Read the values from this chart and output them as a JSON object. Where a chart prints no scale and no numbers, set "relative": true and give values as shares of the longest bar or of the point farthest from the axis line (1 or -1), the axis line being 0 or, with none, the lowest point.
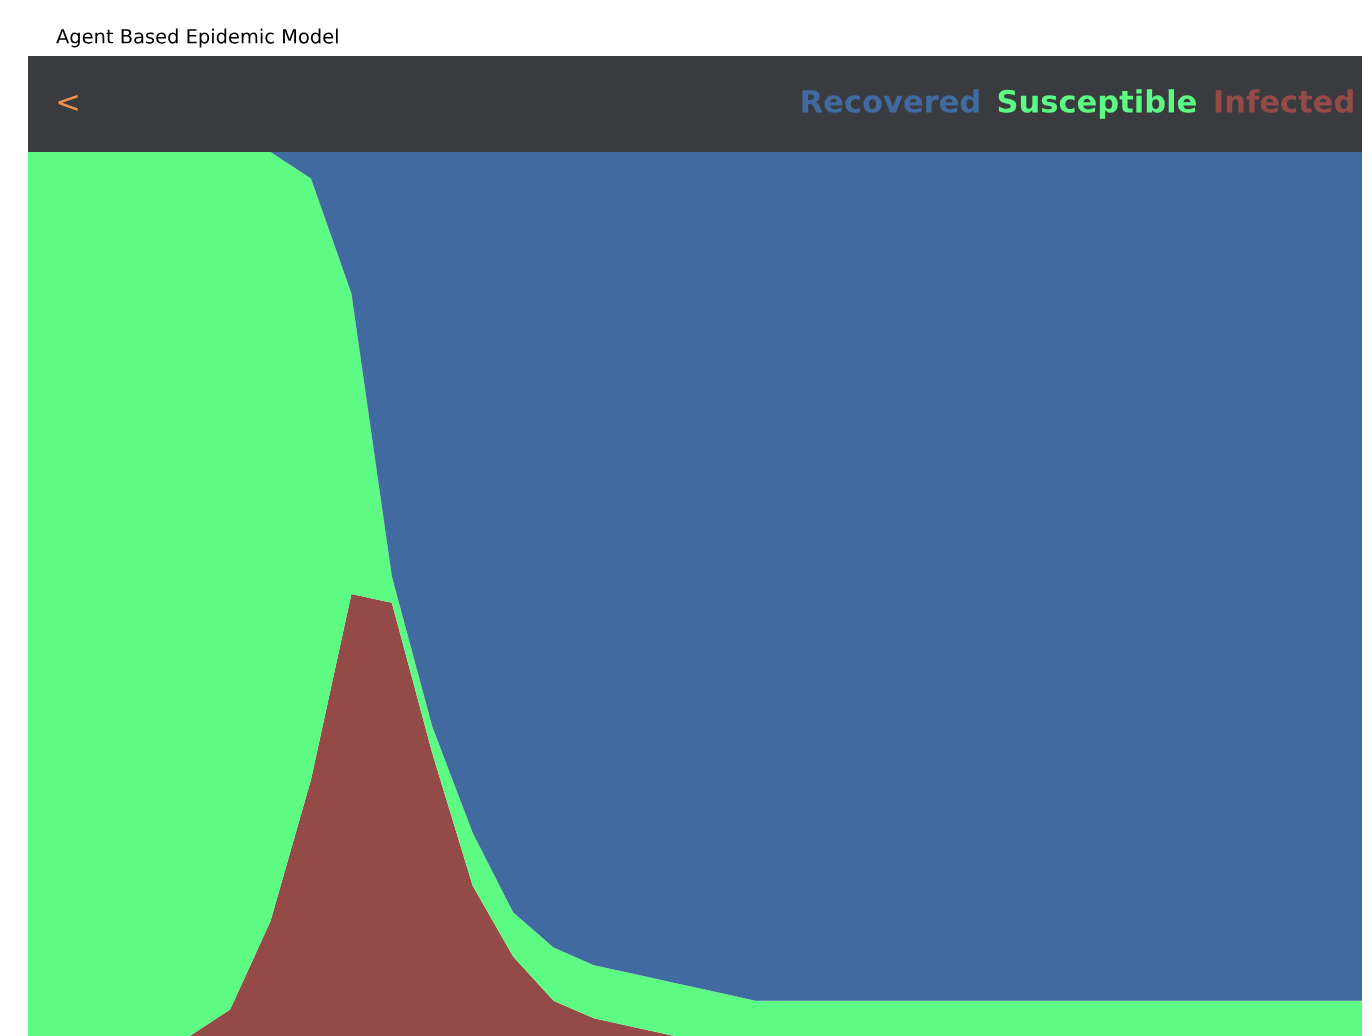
{
  "chart_data": {
    "type": "area",
    "title": "Agent Based Epidemic Model",
    "stacked": true,
    "relative": true,
    "legend": "top right",
    "annotations": [
      "<"
    ],
    "categories": [
      null,
      null,
      null,
      null,
      null,
      null,
      null,
      null,
      null,
      null,
      null,
      null,
      null,
      null,
      null,
      null,
      null,
      null,
      null,
      null,
      null,
      null,
      null,
      null,
      null,
      null,
      null,
      null,
      null,
      null,
      null,
      null,
      null,
      null
    ],
    "series": [
      {
        "name": "Infected",
        "color": "#944b48",
        "values": [
          0,
          0,
          0,
          0,
          0,
          0.03,
          0.13,
          0.29,
          0.5,
          0.49,
          0.32,
          0.17,
          0.09,
          0.04,
          0.02,
          0.01,
          0,
          0,
          0,
          0,
          0,
          0,
          0,
          0,
          0,
          0,
          0,
          0,
          0,
          0,
          0,
          0,
          0,
          0
        ]
      },
      {
        "name": "Susceptible",
        "color": "#5dfb83",
        "values": [
          1,
          1,
          1,
          1,
          1,
          0.97,
          0.87,
          0.68,
          0.34,
          0.03,
          0.03,
          0.06,
          0.05,
          0.06,
          0.06,
          0.06,
          0.06,
          0.05,
          0.04,
          0.04,
          0.04,
          0.04,
          0.04,
          0.04,
          0.04,
          0.04,
          0.04,
          0.04,
          0.04,
          0.04,
          0.04,
          0.04,
          0.04,
          0.04
        ]
      },
      {
        "name": "Recovered",
        "color": "#406aa0",
        "values": [
          0,
          0,
          0,
          0,
          0,
          0,
          0,
          0.03,
          0.16,
          0.48,
          0.65,
          0.77,
          0.86,
          0.9,
          0.92,
          0.93,
          0.94,
          0.95,
          0.96,
          0.96,
          0.96,
          0.96,
          0.96,
          0.96,
          0.96,
          0.96,
          0.96,
          0.96,
          0.96,
          0.96,
          0.96,
          0.96,
          0.96,
          0.96
        ]
      }
    ]
  }
}
